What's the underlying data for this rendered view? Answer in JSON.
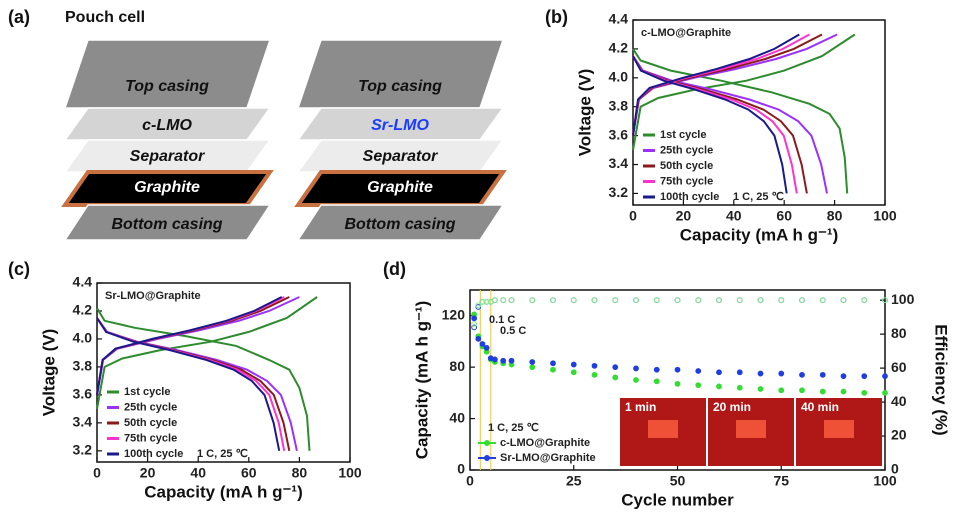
{
  "pouch": {
    "label": "(a)",
    "title": "Pouch cell",
    "left": [
      "Top casing",
      "c-LMO",
      "Separator",
      "Graphite",
      "Bottom casing"
    ],
    "right": [
      "Top casing",
      "Sr-LMO",
      "Separator",
      "Graphite",
      "Bottom casing"
    ]
  },
  "chart_data": [
    {
      "type": "line",
      "label": "(b)",
      "title": "c-LMO@Graphite",
      "xlabel": "Capacity (mA h g⁻¹)",
      "ylabel": "Voltage (V)",
      "annotation": "1 C, 25 ℃",
      "xlim": [
        0,
        100
      ],
      "ylim": [
        3.12,
        4.4
      ],
      "xticks": [
        0,
        20,
        40,
        60,
        80,
        100
      ],
      "yticks": [
        3.2,
        3.4,
        3.6,
        3.8,
        {
          "value": 4,
          "label": "4.0"
        },
        4.2,
        4.4
      ],
      "series": [
        {
          "name": "1st cycle",
          "color": "#2e8b2e",
          "curves": [
            {
              "x": [
                0,
                3,
                10,
                25,
                45,
                60,
                75,
                88
              ],
              "values": [
                3.5,
                3.8,
                3.86,
                3.92,
                3.98,
                4.05,
                4.15,
                4.3
              ]
            },
            {
              "x": [
                0,
                3,
                15,
                35,
                55,
                70,
                78,
                82,
                84,
                85
              ],
              "values": [
                4.2,
                4.12,
                4.05,
                3.98,
                3.9,
                3.82,
                3.75,
                3.65,
                3.45,
                3.2
              ]
            }
          ]
        },
        {
          "name": "25th cycle",
          "color": "#9b30ff",
          "curves": [
            {
              "x": [
                0,
                2.4,
                8.1,
                24.3,
                40.5,
                56.7,
                68.9,
                81
              ],
              "values": [
                3.6,
                3.85,
                3.93,
                4.0,
                4.06,
                4.13,
                4.2,
                4.3
              ]
            },
            {
              "x": [
                0,
                3.9,
                15.4,
                30.8,
                46.2,
                57.8,
                65.5,
                70.8,
                74.7,
                77
              ],
              "values": [
                4.15,
                4.05,
                3.98,
                3.92,
                3.85,
                3.78,
                3.7,
                3.6,
                3.4,
                3.2
              ]
            }
          ]
        },
        {
          "name": "50th cycle",
          "color": "#8b1a1a",
          "curves": [
            {
              "x": [
                0,
                2.3,
                7.5,
                22.5,
                37.5,
                52.5,
                63.8,
                75
              ],
              "values": [
                3.6,
                3.85,
                3.93,
                4.0,
                4.06,
                4.13,
                4.2,
                4.3
              ]
            },
            {
              "x": [
                0,
                3.5,
                13.8,
                27.6,
                41.4,
                51.8,
                58.7,
                63.5,
                66.9,
                69
              ],
              "values": [
                4.15,
                4.05,
                3.98,
                3.92,
                3.85,
                3.78,
                3.7,
                3.6,
                3.4,
                3.2
              ]
            }
          ]
        },
        {
          "name": "75th cycle",
          "color": "#ff33cc",
          "curves": [
            {
              "x": [
                0,
                2.1,
                7,
                21,
                35,
                49,
                59.5,
                70
              ],
              "values": [
                3.6,
                3.85,
                3.93,
                4.0,
                4.06,
                4.13,
                4.2,
                4.3
              ]
            },
            {
              "x": [
                0,
                3.3,
                13,
                26,
                39,
                48.8,
                55.3,
                59.8,
                63,
                65
              ],
              "values": [
                4.15,
                4.05,
                3.98,
                3.92,
                3.85,
                3.78,
                3.7,
                3.6,
                3.4,
                3.2
              ]
            }
          ]
        },
        {
          "name": "100th cycle",
          "color": "#1a1a8c",
          "curves": [
            {
              "x": [
                0,
                2,
                6.6,
                19.8,
                33,
                46.2,
                56.1,
                66
              ],
              "values": [
                3.6,
                3.85,
                3.93,
                4.0,
                4.06,
                4.13,
                4.2,
                4.3
              ]
            },
            {
              "x": [
                0,
                3.1,
                12.2,
                24.4,
                36.6,
                45.8,
                51.9,
                56.1,
                59.2,
                61
              ],
              "values": [
                4.15,
                4.05,
                3.98,
                3.92,
                3.85,
                3.78,
                3.7,
                3.6,
                3.4,
                3.2
              ]
            }
          ]
        }
      ]
    },
    {
      "type": "line",
      "label": "(c)",
      "title": "Sr-LMO@Graphite",
      "xlabel": "Capacity (mA h g⁻¹)",
      "ylabel": "Voltage (V)",
      "annotation": "1 C, 25 ℃",
      "xlim": [
        0,
        100
      ],
      "ylim": [
        3.12,
        4.4
      ],
      "xticks": [
        0,
        20,
        40,
        60,
        80,
        100
      ],
      "yticks": [
        3.2,
        3.4,
        3.6,
        3.8,
        {
          "value": 4,
          "label": "4.0"
        },
        4.2,
        4.4
      ],
      "series": [
        {
          "name": "1st cycle",
          "color": "#2e8b2e",
          "curves": [
            {
              "x": [
                0,
                3,
                10,
                25,
                45,
                60,
                75,
                87
              ],
              "values": [
                3.5,
                3.8,
                3.86,
                3.92,
                3.98,
                4.05,
                4.15,
                4.3
              ]
            },
            {
              "x": [
                0,
                3,
                15,
                35,
                55,
                68,
                76,
                80,
                83,
                84
              ],
              "values": [
                4.22,
                4.13,
                4.08,
                4.02,
                3.95,
                3.85,
                3.78,
                3.65,
                3.45,
                3.2
              ]
            }
          ]
        },
        {
          "name": "25th cycle",
          "color": "#9b30ff",
          "curves": [
            {
              "x": [
                0,
                2.4,
                8,
                24,
                40,
                56,
                68,
                80
              ],
              "values": [
                3.6,
                3.85,
                3.93,
                4.0,
                4.06,
                4.13,
                4.2,
                4.3
              ]
            },
            {
              "x": [
                0,
                4,
                15.8,
                31.6,
                47.4,
                59.3,
                67.2,
                72.7,
                76.6,
                79
              ],
              "values": [
                4.15,
                4.05,
                3.98,
                3.92,
                3.85,
                3.78,
                3.7,
                3.6,
                3.4,
                3.2
              ]
            }
          ]
        },
        {
          "name": "50th cycle",
          "color": "#8b1a1a",
          "curves": [
            {
              "x": [
                0,
                2.3,
                7.6,
                22.8,
                38,
                53.2,
                64.6,
                76
              ],
              "values": [
                3.6,
                3.85,
                3.93,
                4.0,
                4.06,
                4.13,
                4.2,
                4.3
              ]
            },
            {
              "x": [
                0,
                3.8,
                15.2,
                30.4,
                45.6,
                57,
                64.6,
                69.9,
                73.7,
                76
              ],
              "values": [
                4.15,
                4.05,
                3.98,
                3.92,
                3.85,
                3.78,
                3.7,
                3.6,
                3.4,
                3.2
              ]
            }
          ]
        },
        {
          "name": "75th cycle",
          "color": "#ff33cc",
          "curves": [
            {
              "x": [
                0,
                2.2,
                7.4,
                22.2,
                37,
                51.8,
                62.9,
                74
              ],
              "values": [
                3.6,
                3.85,
                3.93,
                4.0,
                4.06,
                4.13,
                4.2,
                4.3
              ]
            },
            {
              "x": [
                0,
                3.7,
                14.8,
                29.6,
                44.4,
                55.5,
                62.9,
                68.1,
                71.8,
                74
              ],
              "values": [
                4.15,
                4.05,
                3.98,
                3.92,
                3.85,
                3.78,
                3.7,
                3.6,
                3.4,
                3.2
              ]
            }
          ]
        },
        {
          "name": "100th cycle",
          "color": "#1a1a8c",
          "curves": [
            {
              "x": [
                0,
                2.2,
                7.3,
                21.9,
                36.5,
                51.1,
                62.1,
                73
              ],
              "values": [
                3.6,
                3.85,
                3.93,
                4.0,
                4.06,
                4.13,
                4.2,
                4.3
              ]
            },
            {
              "x": [
                0,
                3.6,
                14.4,
                28.8,
                43.2,
                54,
                61.2,
                66.2,
                69.8,
                72
              ],
              "values": [
                4.15,
                4.05,
                3.98,
                3.92,
                3.85,
                3.78,
                3.7,
                3.6,
                3.4,
                3.2
              ]
            }
          ]
        }
      ]
    },
    {
      "type": "scatter",
      "label": "(d)",
      "xlabel": "Cycle number",
      "ylabel": "Capacity (mA h g⁻¹)",
      "y2label": "Efficiency (%)",
      "annotations": [
        "0.1 C",
        "0.5 C",
        "1 C, 25 ℃"
      ],
      "rate_change_x": [
        2.5,
        5
      ],
      "inset_labels": [
        "1 min",
        "20 min",
        "40 min"
      ],
      "xlim": [
        0,
        100
      ],
      "ylim": [
        0,
        140
      ],
      "y2lim": [
        0,
        106
      ],
      "xticks": [
        0,
        25,
        50,
        75,
        100
      ],
      "yticks": [
        0,
        40,
        80,
        120
      ],
      "y2ticks": [
        0,
        20,
        40,
        60,
        80,
        100
      ],
      "x": [
        1,
        2,
        3,
        4,
        5,
        6,
        8,
        10,
        15,
        20,
        25,
        30,
        35,
        40,
        45,
        50,
        55,
        60,
        65,
        70,
        75,
        80,
        85,
        90,
        95,
        100
      ],
      "series": [
        {
          "name": "c-LMO@Graphite",
          "color": "#33dd33",
          "values": [
            121,
            104,
            96,
            92,
            86,
            84,
            83,
            82,
            80,
            78,
            76,
            74,
            72,
            70,
            69,
            67,
            66,
            65,
            64,
            63,
            62,
            62,
            61,
            61,
            60,
            60
          ]
        },
        {
          "name": "Sr-LMO@Graphite",
          "color": "#1f3fe0",
          "values": [
            118,
            102,
            98,
            95,
            87,
            86,
            85,
            85,
            84,
            83,
            82,
            81,
            80,
            79,
            78,
            78,
            77,
            76,
            76,
            75,
            75,
            74,
            74,
            73,
            73,
            73
          ]
        },
        {
          "color": "#1f3fe0",
          "axis": "y2",
          "values": [
            84,
            96,
            99,
            99,
            99,
            100,
            100,
            100,
            100,
            100,
            100,
            100,
            100,
            100,
            100,
            100,
            100,
            100,
            100,
            100,
            100,
            100,
            100,
            100,
            100,
            100
          ]
        },
        {
          "color": "#88ee88",
          "axis": "y2",
          "values": [
            86,
            97,
            99,
            99,
            99,
            100,
            100,
            100,
            100,
            100,
            100,
            100,
            100,
            100,
            100,
            100,
            100,
            100,
            100,
            100,
            100,
            100,
            100,
            100,
            100,
            100
          ]
        }
      ]
    }
  ]
}
